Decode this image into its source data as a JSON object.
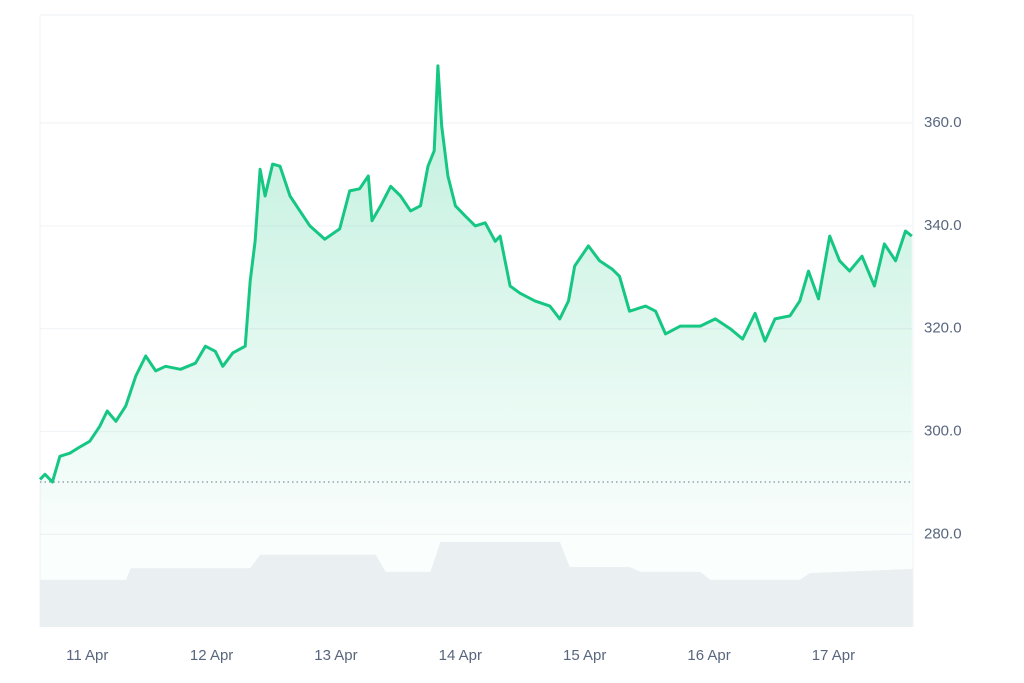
{
  "chart_data": {
    "type": "line",
    "x": [
      -0.38,
      -0.34,
      -0.28,
      -0.22,
      -0.14,
      -0.06,
      0.02,
      0.1,
      0.16,
      0.23,
      0.31,
      0.39,
      0.47,
      0.55,
      0.63,
      0.75,
      0.87,
      0.95,
      1.03,
      1.09,
      1.17,
      1.27,
      1.31,
      1.35,
      1.39,
      1.43,
      1.49,
      1.55,
      1.63,
      1.71,
      1.79,
      1.91,
      2.03,
      2.11,
      2.19,
      2.26,
      2.29,
      2.36,
      2.44,
      2.52,
      2.6,
      2.68,
      2.74,
      2.79,
      2.82,
      2.85,
      2.9,
      2.96,
      3.04,
      3.12,
      3.2,
      3.28,
      3.32,
      3.4,
      3.48,
      3.6,
      3.72,
      3.8,
      3.87,
      3.92,
      4.03,
      4.12,
      4.22,
      4.28,
      4.36,
      4.49,
      4.57,
      4.65,
      4.77,
      4.93,
      5.05,
      5.17,
      5.27,
      5.37,
      5.45,
      5.53,
      5.65,
      5.73,
      5.8,
      5.88,
      5.97,
      6.05,
      6.13,
      6.23,
      6.33,
      6.41,
      6.5,
      6.58,
      6.63
    ],
    "values": [
      290.7,
      291.7,
      290.2,
      295.2,
      295.8,
      297,
      298.1,
      301,
      304,
      302,
      305,
      310.8,
      314.7,
      311.8,
      312.7,
      312.1,
      313.3,
      316.6,
      315.6,
      312.7,
      315.3,
      316.6,
      329.3,
      337,
      351,
      345.8,
      352,
      351.6,
      345.8,
      342.9,
      340,
      337.4,
      339.4,
      346.8,
      347.2,
      349.7,
      341,
      343.9,
      347.7,
      345.8,
      342.9,
      343.9,
      351.6,
      354.6,
      371.1,
      359.4,
      349.7,
      343.9,
      341.9,
      340,
      340.6,
      337,
      338,
      328.3,
      326.9,
      325.4,
      324.4,
      321.9,
      325.4,
      332.2,
      336.1,
      333.2,
      331.6,
      330.2,
      323.4,
      324.4,
      323.4,
      319,
      320.5,
      320.5,
      321.9,
      320,
      318,
      323,
      317.6,
      321.9,
      322.5,
      325.4,
      331.2,
      325.8,
      338,
      333.2,
      331.2,
      334.1,
      328.3,
      336.5,
      333.2,
      339,
      338
    ],
    "color": "#16c784",
    "reference_line": 290.2,
    "volume": {
      "x": [
        -0.38,
        0.31,
        0.35,
        1.31,
        1.39,
        2.32,
        2.4,
        2.76,
        2.84,
        3.8,
        3.88,
        4.36,
        4.45,
        4.93,
        5.01,
        5.73,
        5.81,
        6.64
      ],
      "values": [
        7.7,
        7.7,
        9.6,
        9.6,
        11.8,
        11.8,
        9,
        9,
        13.9,
        13.9,
        9.8,
        9.8,
        9,
        9,
        7.7,
        7.7,
        8.8,
        9.5
      ],
      "color": "#eef0f3",
      "axis": "y2"
    },
    "xlim": [
      -0.38,
      6.64
    ],
    "xticks": [
      {
        "value": 0,
        "label": "11 Apr"
      },
      {
        "value": 1,
        "label": "12 Apr"
      },
      {
        "value": 2,
        "label": "13 Apr"
      },
      {
        "value": 3,
        "label": "14 Apr"
      },
      {
        "value": 4,
        "label": "15 Apr"
      },
      {
        "value": 5,
        "label": "16 Apr"
      },
      {
        "value": 6,
        "label": "17 Apr"
      }
    ],
    "ylim": [
      262,
      381
    ],
    "yticks": [
      {
        "value": 280,
        "label": "280.0"
      },
      {
        "value": 300,
        "label": "300.0"
      },
      {
        "value": 320,
        "label": "320.0"
      },
      {
        "value": 340,
        "label": "340.0"
      },
      {
        "value": 360,
        "label": "360.0"
      }
    ],
    "y2lim": [
      0,
      100
    ],
    "grid": true
  }
}
